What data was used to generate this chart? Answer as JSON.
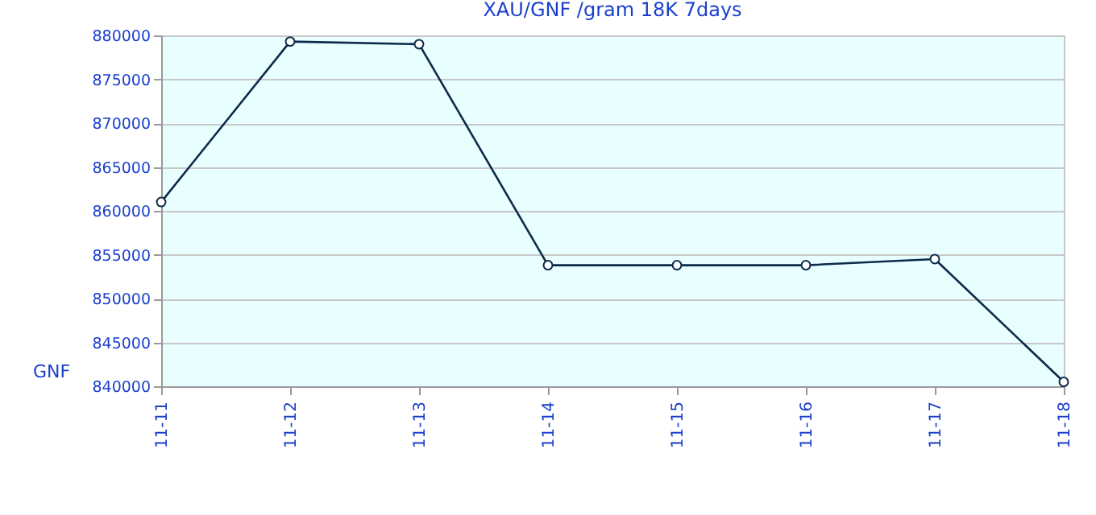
{
  "chart_data": {
    "type": "line",
    "title": "XAU/GNF /gram 18K 7days",
    "ylabel": "GNF",
    "categories": [
      "11-11",
      "11-12",
      "11-13",
      "11-14",
      "11-15",
      "11-16",
      "11-17",
      "11-18"
    ],
    "series": [
      {
        "color": "#0d2a4a",
        "values": [
          861000,
          879300,
          879000,
          853800,
          853800,
          853800,
          854500,
          840500
        ]
      }
    ],
    "ylim": [
      840000,
      880000
    ],
    "yticks": [
      840000,
      845000,
      850000,
      855000,
      860000,
      865000,
      870000,
      875000,
      880000
    ],
    "grid": "y",
    "marker": "circle",
    "line_style": "solid"
  }
}
